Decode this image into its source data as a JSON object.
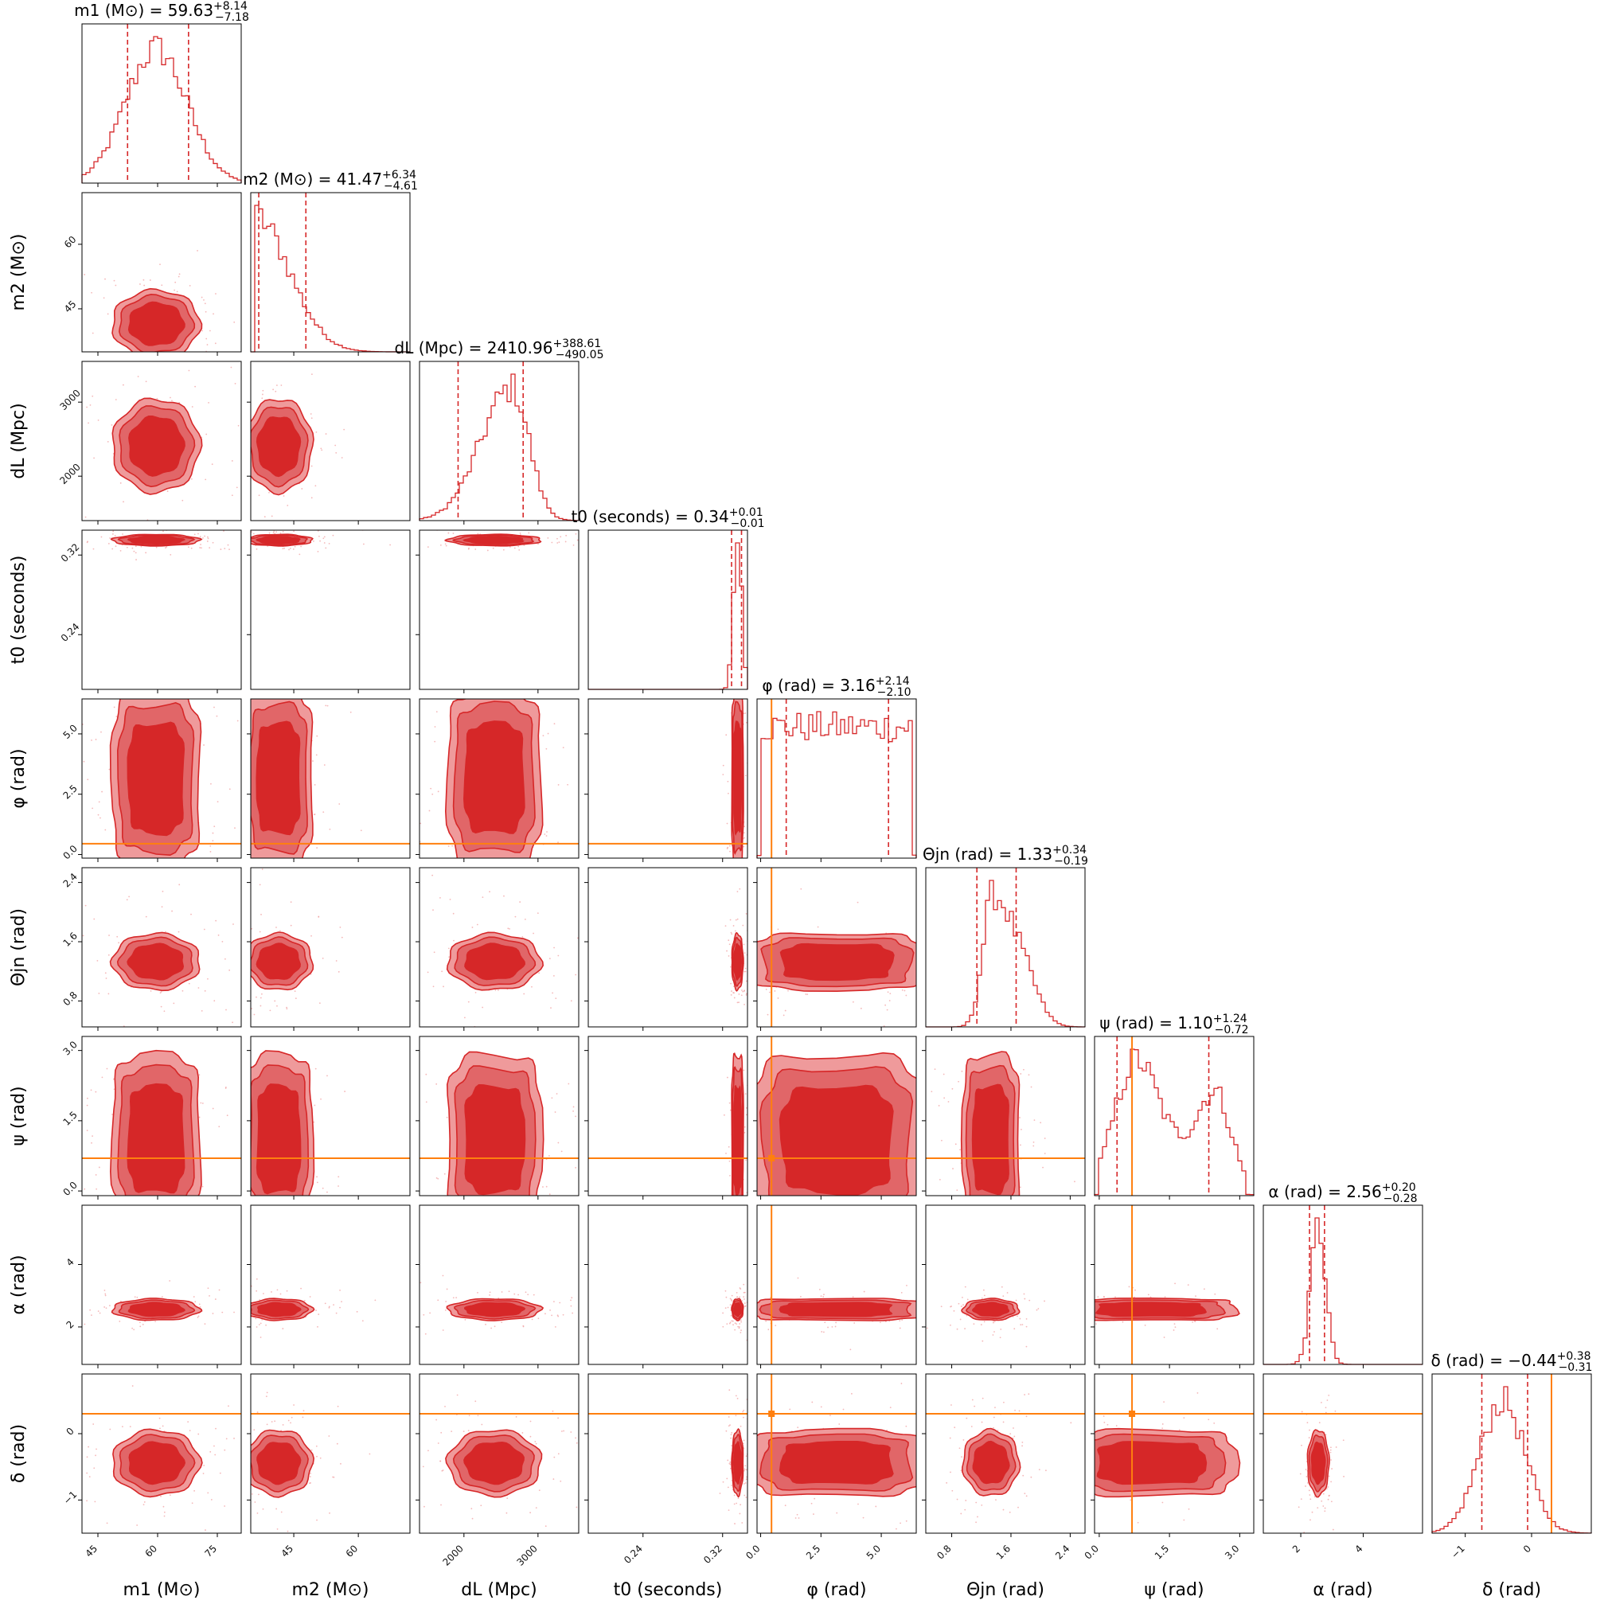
{
  "chart_data": {
    "type": "corner",
    "colors": {
      "posterior": "#d62728",
      "posterior_light": "#ef9a9b",
      "posterior_mid": "#e16668",
      "truth": "#ff7f0e",
      "frame": "#000000"
    },
    "parameters": [
      {
        "key": "m1",
        "sym": "m",
        "sub": "1",
        "unit": "(M⊙)",
        "axis_label": "m1 (M⊙)",
        "title": "m1 (M⊙) = 59.63 +8.14 −7.18",
        "median": "59.63",
        "plus": "+8.14",
        "minus": "−7.18",
        "range": [
          41,
          81
        ],
        "ticks": [
          45,
          60,
          75
        ],
        "tick_labels": [
          "45",
          "60",
          "75"
        ],
        "median_value": 59.63,
        "lower": 52.45,
        "upper": 67.77,
        "truth": null
      },
      {
        "key": "m2",
        "sym": "m",
        "sub": "2",
        "unit": "(M⊙)",
        "axis_label": "m2 (M⊙)",
        "title": "m2 (M⊙) = 41.47 +6.34 −4.61",
        "median": "41.47",
        "plus": "+6.34",
        "minus": "−4.61",
        "range": [
          35,
          72
        ],
        "ticks": [
          45,
          60
        ],
        "tick_labels": [
          "45",
          "60"
        ],
        "median_value": 41.47,
        "lower": 36.86,
        "upper": 47.81,
        "truth": null
      },
      {
        "key": "dL",
        "sym": "d",
        "sub": "L",
        "unit": "(Mpc)",
        "axis_label": "dL (Mpc)",
        "title": "dL (Mpc) = 2410.96 +388.61 −490.05",
        "median": "2410.96",
        "plus": "+388.61",
        "minus": "−490.05",
        "range": [
          1400,
          3550
        ],
        "ticks": [
          2000,
          3000
        ],
        "tick_labels": [
          "2000",
          "3000"
        ],
        "median_value": 2410.96,
        "lower": 1920.91,
        "upper": 2799.57,
        "truth": null
      },
      {
        "key": "t0",
        "sym": "t",
        "sub": "0",
        "unit": "(seconds)",
        "axis_label": "t0 (seconds)",
        "title": "t0 (seconds) = 0.34 +0.01 −0.01",
        "median": "0.34",
        "plus": "+0.01",
        "minus": "−0.01",
        "range": [
          0.185,
          0.345
        ],
        "ticks": [
          0.24,
          0.32
        ],
        "tick_labels": [
          "0.24",
          "0.32"
        ],
        "median_value": 0.335,
        "lower": 0.329,
        "upper": 0.339,
        "truth": null
      },
      {
        "key": "phi",
        "sym": "φ",
        "sub": "",
        "unit": "(rad)",
        "axis_label": "φ (rad)",
        "title": "φ (rad) = 3.16 +2.14 −2.10",
        "median": "3.16",
        "plus": "+2.14",
        "minus": "−2.10",
        "range": [
          -0.15,
          6.45
        ],
        "ticks": [
          0.0,
          2.5,
          5.0
        ],
        "tick_labels": [
          "0.0",
          "2.5",
          "5.0"
        ],
        "median_value": 3.16,
        "lower": 1.06,
        "upper": 5.3,
        "truth": 0.45
      },
      {
        "key": "theta",
        "sym": "Θ",
        "sub": "jn",
        "unit": "(rad)",
        "axis_label": "Θjn (rad)",
        "title": "Θjn (rad) = 1.33 +0.34 −0.19",
        "median": "1.33",
        "plus": "+0.34",
        "minus": "−0.19",
        "range": [
          0.45,
          2.6
        ],
        "ticks": [
          0.8,
          1.6,
          2.4
        ],
        "tick_labels": [
          "0.8",
          "1.6",
          "2.4"
        ],
        "median_value": 1.33,
        "lower": 1.14,
        "upper": 1.67,
        "truth": null
      },
      {
        "key": "psi",
        "sym": "ψ",
        "sub": "",
        "unit": "(rad)",
        "axis_label": "ψ (rad)",
        "title": "ψ (rad) = 1.10 +1.24 −0.72",
        "median": "1.10",
        "plus": "+1.24",
        "minus": "−0.72",
        "range": [
          -0.1,
          3.3
        ],
        "ticks": [
          0.0,
          1.5,
          3.0
        ],
        "tick_labels": [
          "0.0",
          "1.5",
          "3.0"
        ],
        "median_value": 1.1,
        "lower": 0.38,
        "upper": 2.34,
        "truth": 0.7
      },
      {
        "key": "alpha",
        "sym": "α",
        "sub": "",
        "unit": "(rad)",
        "axis_label": "α (rad)",
        "title": "α (rad) = 2.56 +0.20 −0.28",
        "median": "2.56",
        "plus": "+0.20",
        "minus": "−0.28",
        "range": [
          0.8,
          5.9
        ],
        "ticks": [
          2,
          4
        ],
        "tick_labels": [
          "2",
          "4"
        ],
        "median_value": 2.56,
        "lower": 2.28,
        "upper": 2.76,
        "truth": null
      },
      {
        "key": "delta",
        "sym": "δ",
        "sub": "",
        "unit": "(rad)",
        "axis_label": "δ (rad)",
        "title": "δ (rad) = −0.44 +0.38 −0.31",
        "median": "−0.44",
        "plus": "+0.38",
        "minus": "−0.31",
        "range": [
          -1.5,
          0.9
        ],
        "ticks": [
          -1,
          0
        ],
        "tick_labels": [
          "−1",
          "0"
        ],
        "median_value": -0.44,
        "lower": -0.75,
        "upper": -0.06,
        "truth": 0.3
      }
    ]
  }
}
